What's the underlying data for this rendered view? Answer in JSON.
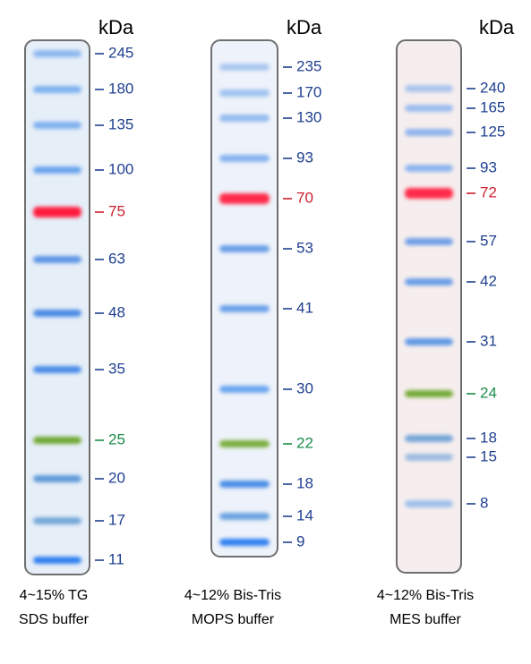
{
  "gels": [
    {
      "unit": "kDa",
      "caption": [
        "4~15% TG",
        "SDS buffer"
      ],
      "background": "#e6eef8",
      "bands": [
        {
          "label": "245",
          "color": "#1f3f8f",
          "band_color": "#8db8ee"
        },
        {
          "label": "180",
          "color": "#1f3f8f",
          "band_color": "#7fb0ee"
        },
        {
          "label": "135",
          "color": "#1f3f8f",
          "band_color": "#7fb0ee"
        },
        {
          "label": "100",
          "color": "#1f3f8f",
          "band_color": "#6aa4ec"
        },
        {
          "label": "75",
          "color": "#cc1f2e",
          "band_color": "#ff1a3c"
        },
        {
          "label": "63",
          "color": "#1f3f8f",
          "band_color": "#5b95e6"
        },
        {
          "label": "48",
          "color": "#1f3f8f",
          "band_color": "#4a8ae4"
        },
        {
          "label": "35",
          "color": "#1f3f8f",
          "band_color": "#4a8ce8"
        },
        {
          "label": "25",
          "color": "#1a8c4a",
          "band_color": "#6fa832"
        },
        {
          "label": "20",
          "color": "#1f3f8f",
          "band_color": "#5f9ad8"
        },
        {
          "label": "17",
          "color": "#1f3f8f",
          "band_color": "#74a8d8"
        },
        {
          "label": "11",
          "color": "#1f3f8f",
          "band_color": "#2f7ff0"
        }
      ]
    },
    {
      "unit": "kDa",
      "caption": [
        "4~12% Bis-Tris",
        "MOPS buffer"
      ],
      "background": "#eef2fa",
      "bands": [
        {
          "label": "235",
          "color": "#1f3f8f",
          "band_color": "#a9c8f0"
        },
        {
          "label": "170",
          "color": "#1f3f8f",
          "band_color": "#9fc2f0"
        },
        {
          "label": "130",
          "color": "#1f3f8f",
          "band_color": "#93baee"
        },
        {
          "label": "93",
          "color": "#1f3f8f",
          "band_color": "#86b2ee"
        },
        {
          "label": "70",
          "color": "#cc1f2e",
          "band_color": "#ff2a48"
        },
        {
          "label": "53",
          "color": "#1f3f8f",
          "band_color": "#6a9ee6"
        },
        {
          "label": "41",
          "color": "#1f3f8f",
          "band_color": "#6aa0e8"
        },
        {
          "label": "30",
          "color": "#1f3f8f",
          "band_color": "#6aa6ee"
        },
        {
          "label": "22",
          "color": "#1a8c4a",
          "band_color": "#78ad3a"
        },
        {
          "label": "18",
          "color": "#1f3f8f",
          "band_color": "#4a8ce6"
        },
        {
          "label": "14",
          "color": "#1f3f8f",
          "band_color": "#6aa2e0"
        },
        {
          "label": "9",
          "color": "#1f3f8f",
          "band_color": "#2f80f2"
        }
      ]
    },
    {
      "unit": "kDa",
      "caption": [
        "4~12% Bis-Tris",
        "MES buffer"
      ],
      "background": "#f6eeee",
      "bands": [
        {
          "label": "240",
          "color": "#1f3f8f",
          "band_color": "#a9c4ee"
        },
        {
          "label": "165",
          "color": "#1f3f8f",
          "band_color": "#9bbcee"
        },
        {
          "label": "125",
          "color": "#1f3f8f",
          "band_color": "#8fb4ec"
        },
        {
          "label": "93",
          "color": "#1f3f8f",
          "band_color": "#8cb4ee"
        },
        {
          "label": "72",
          "color": "#cc1f2e",
          "band_color": "#ff2a48"
        },
        {
          "label": "57",
          "color": "#1f3f8f",
          "band_color": "#6f9ee6"
        },
        {
          "label": "42",
          "color": "#1f3f8f",
          "band_color": "#6a9ee6"
        },
        {
          "label": "31",
          "color": "#1f3f8f",
          "band_color": "#5e98e4"
        },
        {
          "label": "24",
          "color": "#1a8c4a",
          "band_color": "#73aa36"
        },
        {
          "label": "18",
          "color": "#1f3f8f",
          "band_color": "#74a6d8"
        },
        {
          "label": "15",
          "color": "#1f3f8f",
          "band_color": "#9cbce0"
        },
        {
          "label": "8",
          "color": "#1f3f8f",
          "band_color": "#9dc0ea"
        }
      ]
    }
  ]
}
